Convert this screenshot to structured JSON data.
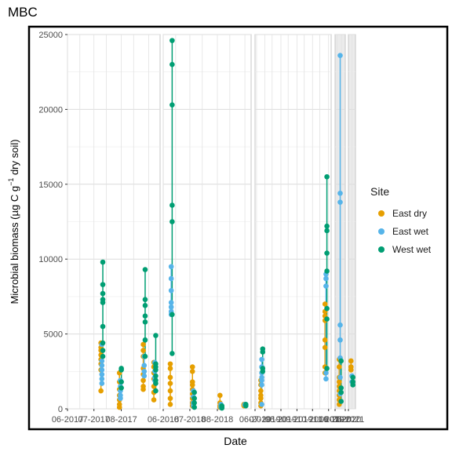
{
  "chart_data": {
    "type": "scatter",
    "title": "MBC",
    "xlabel": "Date",
    "ylabel_main": "Microbial biomass (µg C g",
    "ylabel_sup": "−1",
    "ylabel_tail": " dry soil)",
    "ylim": [
      0,
      25000
    ],
    "yticks": [
      "0",
      "5000",
      "10000",
      "15000",
      "20000",
      "25000"
    ],
    "xticks": [
      "06-2017",
      "07-2017",
      "08-2017",
      "06-2018",
      "07-2018",
      "08-2018",
      "06-2019",
      "07-2019",
      "08-2019",
      "09-2019",
      "10-2019",
      "11-2019",
      "06-2020",
      "07-2020",
      "06-2021"
    ],
    "legend_title": "Site",
    "series": [
      {
        "name": "East dry",
        "color": "#E69F00"
      },
      {
        "name": "East wet",
        "color": "#56B4E9"
      },
      {
        "name": "West wet",
        "color": "#009E73"
      }
    ],
    "points": [
      {
        "d": "2017-07-10",
        "s": 0,
        "v": [
          4400,
          4100,
          3900,
          3600,
          3300,
          3000,
          2600,
          1200
        ]
      },
      {
        "d": "2017-07-10",
        "s": 1,
        "v": [
          4300,
          3200,
          2900,
          2600,
          2300,
          2000,
          1700
        ]
      },
      {
        "d": "2017-07-10",
        "s": 2,
        "v": [
          9800,
          8300,
          7700,
          7300,
          7100,
          5500,
          4400,
          3900,
          3500
        ]
      },
      {
        "d": "2017-07-31",
        "s": 0,
        "v": [
          2400,
          1800,
          1300,
          900,
          600,
          300,
          100
        ]
      },
      {
        "d": "2017-07-31",
        "s": 1,
        "v": [
          1900,
          1500,
          1200,
          900,
          700
        ]
      },
      {
        "d": "2017-07-31",
        "s": 2,
        "v": [
          2700,
          2600,
          1800,
          1400
        ]
      },
      {
        "d": "2017-08-27",
        "s": 0,
        "v": [
          4300,
          3900,
          3500,
          2700,
          2300,
          1900,
          1500,
          1300
        ]
      },
      {
        "d": "2017-08-27",
        "s": 1,
        "v": [
          3500,
          2900,
          2500,
          2200
        ]
      },
      {
        "d": "2017-08-27",
        "s": 2,
        "v": [
          9300,
          7300,
          6900,
          6200,
          5800,
          4600,
          3500
        ]
      },
      {
        "d": "2017-09-08",
        "s": 0,
        "v": [
          3100,
          2800,
          2400,
          2000,
          1500,
          1100,
          600
        ]
      },
      {
        "d": "2017-09-08",
        "s": 1,
        "v": [
          3100,
          2500,
          2100,
          1900
        ]
      },
      {
        "d": "2017-09-08",
        "s": 2,
        "v": [
          4900,
          3000,
          2800,
          2600,
          2200,
          1900,
          1700,
          1200
        ]
      },
      {
        "d": "2018-06-10",
        "s": 0,
        "v": [
          3000,
          2700,
          2100,
          1700,
          1200,
          700,
          300
        ]
      },
      {
        "d": "2018-06-10",
        "s": 1,
        "v": [
          9500,
          8700,
          7900,
          7100,
          6800,
          6500,
          6300
        ]
      },
      {
        "d": "2018-06-10",
        "s": 2,
        "v": [
          24600,
          23000,
          20300,
          13600,
          12500,
          6300,
          3700
        ]
      },
      {
        "d": "2018-07-05",
        "s": 0,
        "v": [
          2800,
          2500,
          1800,
          1600,
          1300,
          1000,
          700,
          400,
          200
        ]
      },
      {
        "d": "2018-07-05",
        "s": 1,
        "v": [
          1200,
          800,
          400,
          200
        ]
      },
      {
        "d": "2018-07-05",
        "s": 2,
        "v": [
          1100,
          700,
          400,
          100
        ]
      },
      {
        "d": "2018-08-05",
        "s": 0,
        "v": [
          900,
          400,
          200,
          100
        ]
      },
      {
        "d": "2018-08-05",
        "s": 1,
        "v": [
          300,
          200,
          100
        ]
      },
      {
        "d": "2018-08-05",
        "s": 2,
        "v": [
          200,
          100,
          50
        ]
      },
      {
        "d": "2018-09-01",
        "s": 0,
        "v": [
          300,
          250,
          200
        ]
      },
      {
        "d": "2018-09-01",
        "s": 1,
        "v": [
          300,
          250
        ]
      },
      {
        "d": "2018-09-01",
        "s": 2,
        "v": [
          300,
          200
        ]
      },
      {
        "d": "2019-06-25",
        "s": 0,
        "v": [
          1900,
          1600,
          1200,
          900,
          700,
          400,
          200
        ]
      },
      {
        "d": "2019-06-25",
        "s": 1,
        "v": [
          3300,
          2800,
          2400,
          2100,
          1900,
          1600,
          300
        ]
      },
      {
        "d": "2019-06-25",
        "s": 2,
        "v": [
          4000,
          3800,
          2700,
          2500
        ]
      },
      {
        "d": "2019-10-27",
        "s": 0,
        "v": [
          7000,
          6500,
          6200,
          5900,
          4600,
          4100,
          2800,
          2400
        ]
      },
      {
        "d": "2019-10-27",
        "s": 1,
        "v": [
          9000,
          8700,
          8200,
          2400,
          2000
        ]
      },
      {
        "d": "2019-10-27",
        "s": 2,
        "v": [
          15500,
          12200,
          11900,
          10400,
          9200,
          6700,
          6000,
          2700
        ]
      },
      {
        "d": "2020-06-20",
        "s": 0,
        "v": [
          3300,
          2800,
          2100,
          1800,
          1500,
          1200,
          900,
          600,
          300
        ]
      },
      {
        "d": "2020-06-20",
        "s": 1,
        "v": [
          23600,
          14400,
          13800,
          5600,
          4600,
          3400,
          2100,
          1000
        ]
      },
      {
        "d": "2020-06-20",
        "s": 2,
        "v": [
          3200,
          1400,
          1100,
          500
        ]
      },
      {
        "d": "2021-06-15",
        "s": 0,
        "v": [
          3200,
          2800,
          2600
        ]
      },
      {
        "d": "2021-06-15",
        "s": 1,
        "v": [
          2200,
          1800
        ]
      },
      {
        "d": "2021-06-15",
        "s": 2,
        "v": [
          2100,
          1800,
          1600
        ]
      }
    ]
  }
}
